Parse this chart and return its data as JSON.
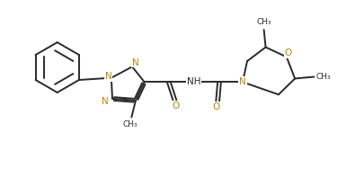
{
  "bg_color": "#ffffff",
  "line_color": "#2a2a2a",
  "n_color": "#b8860b",
  "o_color": "#b8860b",
  "lw": 1.4,
  "fig_width": 3.95,
  "fig_height": 2.16,
  "dpi": 100,
  "xlim": [
    0,
    9.5
  ],
  "ylim": [
    0,
    5.5
  ]
}
